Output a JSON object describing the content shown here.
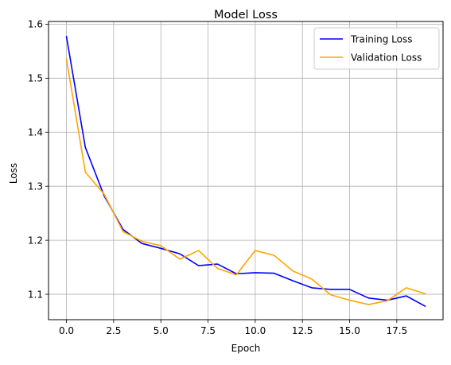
{
  "chart_data": {
    "type": "line",
    "title": "Model Loss",
    "xlabel": "Epoch",
    "ylabel": "Loss",
    "xlim": [
      -0.95,
      19.95
    ],
    "ylim": [
      1.053,
      1.605
    ],
    "grid": true,
    "legend_position": "top-right",
    "x": [
      0,
      1,
      2,
      3,
      4,
      5,
      6,
      7,
      8,
      9,
      10,
      11,
      12,
      13,
      14,
      15,
      16,
      17,
      18,
      19
    ],
    "x_ticks": [
      {
        "value": 0.0,
        "label": "0.0"
      },
      {
        "value": 2.5,
        "label": "2.5"
      },
      {
        "value": 5.0,
        "label": "5.0"
      },
      {
        "value": 7.5,
        "label": "7.5"
      },
      {
        "value": 10.0,
        "label": "10.0"
      },
      {
        "value": 12.5,
        "label": "12.5"
      },
      {
        "value": 15.0,
        "label": "15.0"
      },
      {
        "value": 17.5,
        "label": "17.5"
      }
    ],
    "y_ticks": [
      {
        "value": 1.1,
        "label": "1.1"
      },
      {
        "value": 1.2,
        "label": "1.2"
      },
      {
        "value": 1.3,
        "label": "1.3"
      },
      {
        "value": 1.4,
        "label": "1.4"
      },
      {
        "value": 1.5,
        "label": "1.5"
      },
      {
        "value": 1.6,
        "label": "1.6"
      }
    ],
    "series": [
      {
        "name": "Training Loss",
        "color": "#0000ff",
        "values": [
          1.577,
          1.372,
          1.282,
          1.22,
          1.194,
          1.185,
          1.175,
          1.153,
          1.156,
          1.138,
          1.14,
          1.139,
          1.125,
          1.112,
          1.109,
          1.109,
          1.093,
          1.089,
          1.097,
          1.078
        ]
      },
      {
        "name": "Validation Loss",
        "color": "#ffa500",
        "values": [
          1.535,
          1.326,
          1.285,
          1.216,
          1.198,
          1.19,
          1.165,
          1.181,
          1.148,
          1.136,
          1.181,
          1.172,
          1.143,
          1.128,
          1.099,
          1.089,
          1.081,
          1.088,
          1.112,
          1.101
        ]
      }
    ]
  }
}
